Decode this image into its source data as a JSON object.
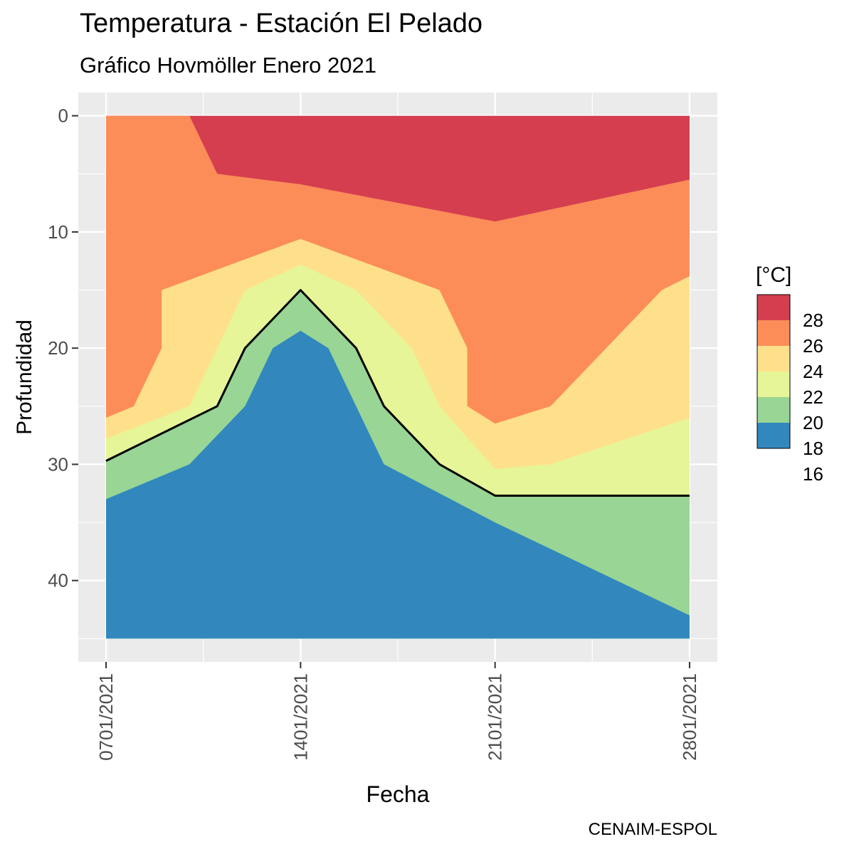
{
  "title": "Temperatura - Estación El Pelado",
  "subtitle": "Gráfico Hovmöller Enero 2021",
  "caption": "CENAIM-ESPOL",
  "chart_data": {
    "type": "area",
    "title": "Temperatura - Estación El Pelado",
    "subtitle": "Gráfico Hovmöller Enero 2021",
    "xlabel": "Fecha",
    "ylabel": "Profundidad",
    "x_ticks": [
      "0701/2021",
      "1401/2021",
      "2101/2021",
      "2801/2021"
    ],
    "x_tick_dates": [
      "2021-01-07",
      "2021-01-14",
      "2021-01-21",
      "2021-01-28"
    ],
    "y_ticks": [
      0,
      10,
      20,
      30,
      40
    ],
    "xlim": [
      "2021-01-06",
      "2021-01-29"
    ],
    "ylim": [
      47,
      -2
    ],
    "y_reversed": true,
    "grid": true,
    "legend": {
      "title": "[°C]",
      "position": "right",
      "breaks": [
        28,
        26,
        24,
        22,
        20,
        18,
        16
      ],
      "colors": [
        "#D53E4F",
        "#FC8D59",
        "#FEE08B",
        "#E6F598",
        "#99D594",
        "#3288BD"
      ]
    },
    "bands": [
      {
        "range": "<18",
        "color": "#3288BD",
        "upper_boundary": [
          [
            "2021-01-07",
            33
          ],
          [
            "2021-01-10",
            30
          ],
          [
            "2021-01-12",
            25
          ],
          [
            "2021-01-13",
            20
          ],
          [
            "2021-01-14",
            18.5
          ],
          [
            "2021-01-15",
            20
          ],
          [
            "2021-01-16",
            25
          ],
          [
            "2021-01-17",
            30
          ],
          [
            "2021-01-21",
            35
          ],
          [
            "2021-01-28",
            43
          ]
        ]
      },
      {
        "range": "18-20",
        "color": "#99D594",
        "upper_boundary": [
          [
            "2021-01-07",
            29.7
          ],
          [
            "2021-01-11",
            25
          ],
          [
            "2021-01-12",
            20
          ],
          [
            "2021-01-14",
            15
          ],
          [
            "2021-01-16",
            20
          ],
          [
            "2021-01-17",
            25
          ],
          [
            "2021-01-19",
            30
          ],
          [
            "2021-01-21",
            32.7
          ],
          [
            "2021-01-28",
            32.7
          ]
        ]
      },
      {
        "range": "20-22",
        "color": "#E6F598",
        "upper_boundary": [
          [
            "2021-01-07",
            27.8
          ],
          [
            "2021-01-10",
            25
          ],
          [
            "2021-01-11",
            20
          ],
          [
            "2021-01-12",
            15
          ],
          [
            "2021-01-14",
            12.8
          ],
          [
            "2021-01-16",
            15
          ],
          [
            "2021-01-18",
            20
          ],
          [
            "2021-01-19",
            25
          ],
          [
            "2021-01-21",
            30.4
          ],
          [
            "2021-01-23",
            30
          ],
          [
            "2021-01-28",
            26
          ]
        ]
      },
      {
        "range": "22-24",
        "color": "#FEE08B",
        "upper_boundary": [
          [
            "2021-01-07",
            26
          ],
          [
            "2021-01-08",
            25
          ],
          [
            "2021-01-09",
            20
          ],
          [
            "2021-01-09",
            15
          ],
          [
            "2021-01-14",
            10.6
          ],
          [
            "2021-01-19",
            15
          ],
          [
            "2021-01-20",
            20
          ],
          [
            "2021-01-20",
            25
          ],
          [
            "2021-01-21",
            26.5
          ],
          [
            "2021-01-23",
            25
          ],
          [
            "2021-01-27",
            15
          ],
          [
            "2021-01-28",
            13.8
          ]
        ]
      },
      {
        "range": "24-26",
        "color": "#FC8D59",
        "upper_boundary": [
          [
            "2021-01-07",
            0
          ],
          [
            "2021-01-10",
            0
          ],
          [
            "2021-01-11",
            5
          ],
          [
            "2021-01-14",
            5.9
          ],
          [
            "2021-01-21",
            9.1
          ],
          [
            "2021-01-28",
            5.5
          ]
        ]
      },
      {
        "range": ">26",
        "color": "#D53E4F",
        "upper_boundary": [
          [
            "2021-01-07",
            0
          ],
          [
            "2021-01-28",
            0
          ]
        ]
      }
    ],
    "isotherm_20C": [
      [
        "2021-01-07",
        29.7
      ],
      [
        "2021-01-11",
        25
      ],
      [
        "2021-01-12",
        20
      ],
      [
        "2021-01-14",
        15
      ],
      [
        "2021-01-16",
        20
      ],
      [
        "2021-01-17",
        25
      ],
      [
        "2021-01-19",
        30
      ],
      [
        "2021-01-21",
        32.7
      ],
      [
        "2021-01-28",
        32.7
      ]
    ]
  }
}
